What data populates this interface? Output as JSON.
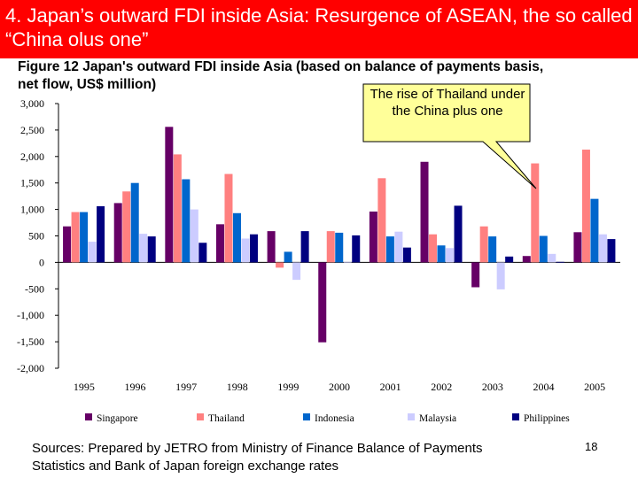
{
  "slide": {
    "title": "4. Japan’s outward FDI inside Asia: Resurgence of ASEAN, the so called “China olus one”",
    "banner_color": "#ff0000",
    "callout": "The rise of Thailand under the China plus one",
    "callout_color": "#ffff99",
    "sources": "Sources: Prepared by JETRO from Ministry of Finance Balance of Payments Statistics and Bank of Japan foreign exchange rates",
    "page_number": "18"
  },
  "chart_data": {
    "type": "bar",
    "title": "Figure 12 Japan's outward FDI inside Asia (based on balance of payments basis, net flow, US$ million)",
    "categories": [
      "1995",
      "1996",
      "1997",
      "1998",
      "1999",
      "2000",
      "2001",
      "2002",
      "2003",
      "2004",
      "2005"
    ],
    "yticks": [
      "3,000",
      "2,500",
      "2,000",
      "1,500",
      "1,000",
      "500",
      "0",
      "-500",
      "-1,000",
      "-1,500",
      "-2,000"
    ],
    "ylim": [
      -2000,
      3000
    ],
    "legend_position": "bottom",
    "series": [
      {
        "name": "Singapore",
        "color": "#660066",
        "values": [
          680,
          1120,
          2560,
          720,
          590,
          -1510,
          960,
          1900,
          -470,
          120,
          570
        ]
      },
      {
        "name": "Thailand",
        "color": "#ff8080",
        "values": [
          950,
          1340,
          2040,
          1670,
          -100,
          590,
          1590,
          530,
          680,
          1870,
          2130
        ]
      },
      {
        "name": "Indonesia",
        "color": "#0066cc",
        "values": [
          950,
          1500,
          1570,
          930,
          200,
          560,
          490,
          320,
          490,
          500,
          1200
        ]
      },
      {
        "name": "Malaysia",
        "color": "#ccccff",
        "values": [
          390,
          540,
          1000,
          450,
          -330,
          10,
          580,
          270,
          -510,
          160,
          530
        ]
      },
      {
        "name": "Philippines",
        "color": "#000080",
        "values": [
          1060,
          490,
          370,
          530,
          590,
          510,
          280,
          1070,
          110,
          10,
          440
        ]
      }
    ]
  }
}
